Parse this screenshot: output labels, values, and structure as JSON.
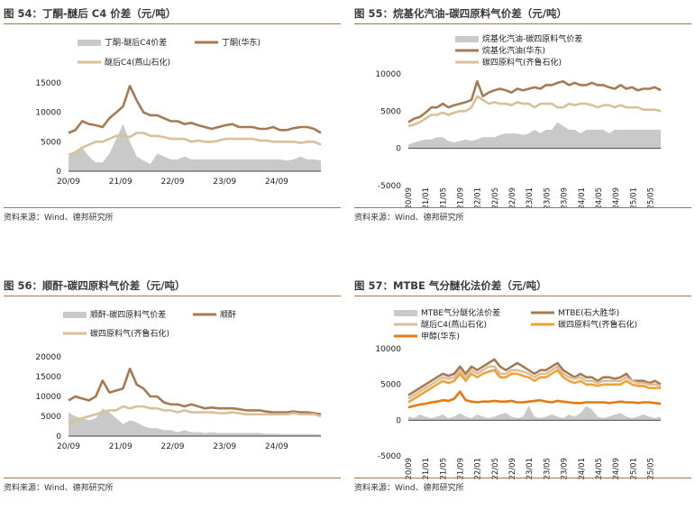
{
  "colors": {
    "accent": "#a0784a",
    "gray": "#c9c9c9",
    "brown": "#a87a52",
    "tan": "#d9c09a",
    "orange": "#f0a23a",
    "darkorange": "#e37a12"
  },
  "chart_data": [
    {
      "type": "line",
      "title": "图 54：丁酮-醚后 C4 价差（元/吨）",
      "source": "资料来源：Wind、德邦研究所",
      "ylim": [
        0,
        15000
      ],
      "yticks": [
        "15000",
        "10000",
        "5000",
        "0"
      ],
      "xticks": [
        "20/09",
        "21/09",
        "22/09",
        "23/09",
        "24/09"
      ],
      "legend": [
        "丁酮-醚后C4价差",
        "丁酮(华东)",
        "醚后C4(燕山石化)"
      ],
      "series": [
        {
          "name": "丁酮-醚后C4价差",
          "kind": "area",
          "color": "#c9c9c9",
          "values": [
            2500,
            3500,
            4000,
            2500,
            1500,
            1500,
            3000,
            5500,
            8000,
            5000,
            2500,
            1800,
            1200,
            3000,
            2500,
            2000,
            2000,
            2500,
            2000,
            2000,
            2000,
            2000,
            2000,
            2000,
            2000,
            2000,
            2000,
            2000,
            2000,
            2000,
            2000,
            2000,
            1800,
            2000,
            2500,
            2000,
            2000,
            1800
          ]
        },
        {
          "name": "丁酮(华东)",
          "kind": "line",
          "color": "#a87a52",
          "values": [
            6500,
            7000,
            8500,
            8000,
            7800,
            7500,
            9000,
            10000,
            11000,
            14500,
            12000,
            10000,
            9500,
            9500,
            9000,
            8500,
            8500,
            8000,
            8200,
            7800,
            7500,
            7200,
            7500,
            7800,
            8000,
            7500,
            7500,
            7500,
            7200,
            7200,
            7500,
            7000,
            7000,
            7300,
            7500,
            7500,
            7200,
            6500
          ]
        },
        {
          "name": "醚后C4(燕山石化)",
          "kind": "line",
          "color": "#d9c09a",
          "values": [
            2800,
            3200,
            4000,
            4500,
            5000,
            5000,
            5500,
            6000,
            6000,
            5800,
            6500,
            6500,
            6000,
            6000,
            5800,
            5500,
            5500,
            5500,
            5000,
            5200,
            5000,
            5000,
            5200,
            5500,
            5500,
            5500,
            5500,
            5500,
            5200,
            5200,
            5000,
            5000,
            5000,
            5000,
            4800,
            5000,
            5000,
            4500
          ]
        }
      ]
    },
    {
      "type": "line",
      "title": "图 55：烷基化汽油-碳四原料气价差（元/吨）",
      "source": "资料来源：Wind、德邦研究所",
      "ylim": [
        -5000,
        10000
      ],
      "yticks": [
        "10000",
        "5000",
        "0",
        "-5000"
      ],
      "xticks": [
        "20/09",
        "21/01",
        "21/05",
        "21/09",
        "22/01",
        "22/05",
        "22/09",
        "23/01",
        "23/05",
        "23/09",
        "24/01",
        "24/05",
        "24/09",
        "25/01",
        "25/05"
      ],
      "legend": [
        "烷基化汽油-碳四原料气价差",
        "烷基化汽油(华东)",
        "碳四原料气(齐鲁石化)"
      ],
      "series": [
        {
          "name": "烷基化汽油-碳四原料气价差",
          "kind": "area",
          "color": "#c9c9c9",
          "values": [
            500,
            800,
            1000,
            1200,
            1200,
            1500,
            1500,
            1000,
            800,
            1000,
            1200,
            1000,
            1200,
            1500,
            1500,
            1500,
            1800,
            2000,
            2000,
            2000,
            1800,
            2000,
            2500,
            2000,
            2500,
            2500,
            3500,
            3000,
            2500,
            2500,
            2000,
            2500,
            2500,
            2500,
            2500,
            2000,
            2500,
            2500,
            2500,
            2500,
            2500,
            2500,
            2500,
            2500,
            2500
          ]
        },
        {
          "name": "烷基化汽油(华东)",
          "kind": "line",
          "color": "#a87a52",
          "values": [
            3500,
            4000,
            4200,
            4800,
            5500,
            5500,
            6000,
            5500,
            5800,
            6000,
            6200,
            6500,
            9000,
            7000,
            7500,
            7800,
            8000,
            7800,
            7500,
            8000,
            7800,
            8000,
            8200,
            8000,
            8500,
            8500,
            8800,
            9000,
            8500,
            8800,
            8500,
            8500,
            8800,
            8500,
            8500,
            8200,
            8000,
            8500,
            8000,
            8200,
            7800,
            8000,
            8000,
            8200,
            7800
          ]
        },
        {
          "name": "碳四原料气(齐鲁石化)",
          "kind": "line",
          "color": "#d9c09a",
          "values": [
            3000,
            3200,
            3500,
            4000,
            4500,
            4500,
            4800,
            4500,
            4800,
            5000,
            5000,
            5500,
            7000,
            6500,
            6000,
            6200,
            6000,
            6000,
            5800,
            6200,
            6000,
            6000,
            5500,
            6000,
            6000,
            6000,
            5500,
            5500,
            6000,
            5800,
            6000,
            6000,
            5800,
            5500,
            5800,
            5800,
            5500,
            5800,
            5500,
            5500,
            5500,
            5200,
            5200,
            5200,
            5000
          ]
        }
      ]
    },
    {
      "type": "line",
      "title": "图 56：顺酐-碳四原料气价差（元/吨）",
      "source": "资料来源：Wind、德邦研究所",
      "ylim": [
        0,
        20000
      ],
      "yticks": [
        "20000",
        "15000",
        "10000",
        "5000",
        "0"
      ],
      "xticks": [
        "20/09",
        "21/09",
        "22/09",
        "23/09",
        "24/09"
      ],
      "legend": [
        "顺酐-碳四原料气价差",
        "顺酐",
        "碳四原料气(齐鲁石化)"
      ],
      "series": [
        {
          "name": "顺酐-碳四原料气价差",
          "kind": "area",
          "color": "#c9c9c9",
          "values": [
            6000,
            5000,
            4500,
            4000,
            4500,
            7000,
            6000,
            4500,
            3000,
            4000,
            3500,
            2500,
            2000,
            2000,
            1500,
            1500,
            1000,
            1500,
            1000,
            1000,
            800,
            1000,
            800,
            800,
            800,
            800,
            800,
            800,
            800,
            600,
            600,
            500,
            500,
            500,
            500,
            500,
            500,
            400
          ]
        },
        {
          "name": "顺酐",
          "kind": "line",
          "color": "#a87a52",
          "values": [
            9000,
            10000,
            9500,
            9000,
            10000,
            14000,
            11000,
            11500,
            12000,
            17000,
            13000,
            12000,
            10000,
            10000,
            8500,
            8000,
            8000,
            7500,
            8000,
            7500,
            7000,
            7200,
            7000,
            7000,
            7000,
            6800,
            6500,
            6500,
            6500,
            6200,
            6000,
            6000,
            6000,
            6200,
            6000,
            6000,
            5800,
            5500
          ]
        },
        {
          "name": "碳四原料气(齐鲁石化)",
          "kind": "line",
          "color": "#d9c09a",
          "values": [
            3000,
            4000,
            4500,
            5000,
            5500,
            6000,
            6500,
            6500,
            7500,
            7000,
            7500,
            7500,
            7000,
            7000,
            6500,
            6500,
            6000,
            6500,
            6000,
            6000,
            6000,
            6000,
            5800,
            5800,
            6000,
            5800,
            5500,
            5500,
            5500,
            5500,
            5500,
            5500,
            5500,
            5800,
            5500,
            5500,
            5500,
            5000
          ]
        }
      ]
    },
    {
      "type": "line",
      "title": "图 57：MTBE 气分醚化法价差（元/吨）",
      "source": "资料来源：Wind、德邦研究所",
      "ylim": [
        -5000,
        10000
      ],
      "yticks": [
        "10000",
        "5000",
        "0",
        "-5000"
      ],
      "xticks": [
        "20/09",
        "21/01",
        "21/05",
        "21/09",
        "22/01",
        "22/05",
        "22/09",
        "23/01",
        "23/05",
        "23/09",
        "24/01",
        "24/05",
        "24/09",
        "25/01",
        "25/05"
      ],
      "legend": [
        "MTBE气分醚化法价差",
        "MTBE(石大胜华)",
        "醚后C4(燕山石化)",
        "碳四原料气(齐鲁石化)",
        "甲醇(华东)"
      ],
      "series": [
        {
          "name": "MTBE气分醚化法价差",
          "kind": "area",
          "color": "#c9c9c9",
          "values": [
            500,
            300,
            800,
            500,
            300,
            500,
            800,
            300,
            500,
            1000,
            500,
            300,
            800,
            500,
            300,
            500,
            800,
            1000,
            500,
            300,
            500,
            2000,
            500,
            300,
            500,
            800,
            500,
            300,
            800,
            500,
            1000,
            2000,
            1500,
            500,
            300,
            500,
            800,
            1000,
            500,
            300,
            500,
            800,
            500,
            300,
            500
          ]
        },
        {
          "name": "MTBE(石大胜华)",
          "kind": "line",
          "color": "#a87a52",
          "values": [
            3500,
            4000,
            4500,
            5000,
            5500,
            6000,
            6500,
            6200,
            6500,
            7500,
            6500,
            7500,
            7000,
            7500,
            8000,
            8500,
            7500,
            7000,
            7500,
            8000,
            7500,
            7000,
            6500,
            7000,
            7000,
            7500,
            8000,
            7000,
            6500,
            6000,
            6500,
            6000,
            6000,
            5500,
            6000,
            6000,
            5800,
            6000,
            6500,
            5500,
            5500,
            5500,
            5200,
            5500,
            5000
          ]
        },
        {
          "name": "醚后C4(燕山石化)",
          "kind": "line",
          "color": "#d9c09a",
          "values": [
            3000,
            3500,
            4000,
            4500,
            5000,
            5500,
            6000,
            5800,
            6000,
            7000,
            6000,
            7000,
            6500,
            7000,
            7500,
            7500,
            6500,
            6500,
            7000,
            7000,
            6800,
            6500,
            6000,
            6500,
            6500,
            7000,
            7500,
            6500,
            6000,
            5800,
            6000,
            5500,
            5500,
            5200,
            5500,
            5500,
            5500,
            5500,
            6000,
            5500,
            5200,
            5200,
            5000,
            5000,
            4800
          ]
        },
        {
          "name": "碳四原料气(齐鲁石化)",
          "kind": "line",
          "color": "#f0a23a",
          "values": [
            2500,
            3000,
            3500,
            4000,
            4500,
            5000,
            5500,
            5200,
            5500,
            6500,
            5500,
            6500,
            6000,
            6500,
            6800,
            7000,
            6000,
            6000,
            6500,
            6500,
            6200,
            6000,
            5500,
            6000,
            6000,
            6500,
            7000,
            6000,
            5500,
            5200,
            5500,
            5000,
            5000,
            4800,
            5000,
            5000,
            5000,
            5000,
            5500,
            5000,
            4800,
            4800,
            4500,
            4500,
            4500
          ]
        },
        {
          "name": "甲醇(华东)",
          "kind": "line",
          "color": "#e37a12",
          "values": [
            1800,
            2000,
            2200,
            2300,
            2500,
            2600,
            2800,
            2700,
            3000,
            4000,
            2800,
            2600,
            2500,
            2600,
            2600,
            2700,
            2600,
            2600,
            2700,
            2500,
            2500,
            2600,
            2700,
            2800,
            2600,
            2500,
            2700,
            2600,
            2500,
            2400,
            2400,
            2500,
            2500,
            2500,
            2500,
            2400,
            2500,
            2600,
            2500,
            2500,
            2400,
            2500,
            2500,
            2400,
            2300
          ]
        }
      ]
    }
  ]
}
